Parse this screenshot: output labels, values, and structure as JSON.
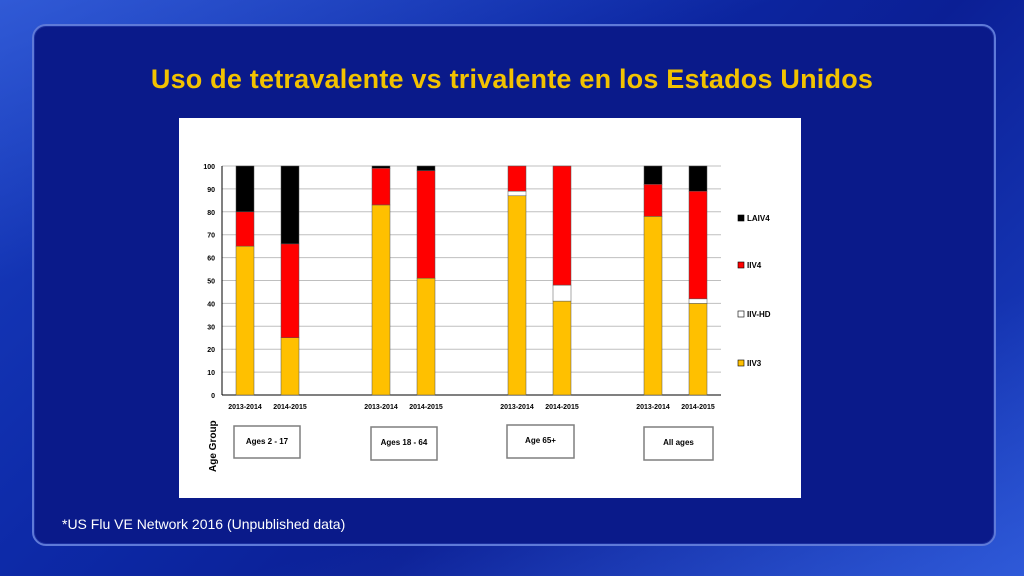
{
  "title": "Uso de tetravalente vs trivalente en los Estados Unidos",
  "footnote": "*US Flu VE Network 2016 (Unpublished data)",
  "colors": {
    "LAIV4": "#000000",
    "IIV4": "#ff0000",
    "IIV-HD": "#ffffff",
    "IIV3": "#ffc000"
  },
  "chart_data": {
    "type": "bar",
    "stacked": true,
    "xlabel": "Age Group",
    "ylabel": "",
    "ylim": [
      0,
      100
    ],
    "yticks": [
      0,
      10,
      20,
      30,
      40,
      50,
      60,
      70,
      80,
      90,
      100
    ],
    "grid": true,
    "legend_position": "right",
    "groups": [
      "Ages 2 - 17",
      "Ages 18 - 64",
      "Age 65+",
      "All ages"
    ],
    "categories": [
      "2013-2014",
      "2014-2015",
      "2013-2014",
      "2014-2015",
      "2013-2014",
      "2014-2015",
      "2013-2014",
      "2014-2015"
    ],
    "series": [
      {
        "name": "IIV3",
        "values": [
          65,
          25,
          83,
          51,
          87,
          41,
          78,
          40
        ]
      },
      {
        "name": "IIV-HD",
        "values": [
          0,
          0,
          0,
          0,
          2,
          7,
          0,
          2
        ]
      },
      {
        "name": "IIV4",
        "values": [
          15,
          41,
          16,
          47,
          11,
          52,
          14,
          47
        ]
      },
      {
        "name": "LAIV4",
        "values": [
          20,
          34,
          1,
          2,
          0,
          0,
          8,
          11
        ]
      }
    ],
    "legend_order": [
      "LAIV4",
      "IIV4",
      "IIV-HD",
      "IIV3"
    ]
  }
}
